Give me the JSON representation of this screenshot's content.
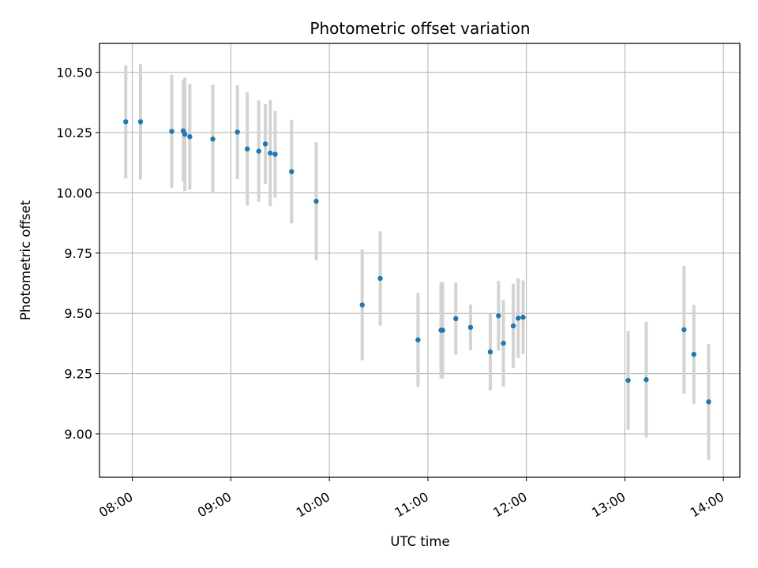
{
  "chart_data": {
    "type": "scatter",
    "title": "Photometric offset variation",
    "xlabel": "UTC time",
    "ylabel": "Photometric offset",
    "x_ticks": [
      "08:00",
      "09:00",
      "10:00",
      "11:00",
      "12:00",
      "13:00",
      "14:00"
    ],
    "y_ticks": [
      "9.00",
      "9.25",
      "9.50",
      "9.75",
      "10.00",
      "10.25",
      "10.50"
    ],
    "xlim": [
      "07:40",
      "14:10"
    ],
    "ylim": [
      8.82,
      10.62
    ],
    "grid": true,
    "marker_color": "#1f77b4",
    "errorbar_color": "#d3d3d3",
    "points": [
      {
        "x": "07:56",
        "y": 10.295,
        "yerr": 0.235
      },
      {
        "x": "08:05",
        "y": 10.295,
        "yerr": 0.24
      },
      {
        "x": "08:24",
        "y": 10.255,
        "yerr": 0.235
      },
      {
        "x": "08:31",
        "y": 10.257,
        "yerr": 0.21
      },
      {
        "x": "08:32",
        "y": 10.243,
        "yerr": 0.235
      },
      {
        "x": "08:35",
        "y": 10.233,
        "yerr": 0.22
      },
      {
        "x": "08:49",
        "y": 10.223,
        "yerr": 0.225
      },
      {
        "x": "09:04",
        "y": 10.252,
        "yerr": 0.195
      },
      {
        "x": "09:10",
        "y": 10.182,
        "yerr": 0.235
      },
      {
        "x": "09:17",
        "y": 10.173,
        "yerr": 0.21
      },
      {
        "x": "09:21",
        "y": 10.203,
        "yerr": 0.165
      },
      {
        "x": "09:24",
        "y": 10.165,
        "yerr": 0.22
      },
      {
        "x": "09:27",
        "y": 10.16,
        "yerr": 0.18
      },
      {
        "x": "09:37",
        "y": 10.088,
        "yerr": 0.215
      },
      {
        "x": "09:52",
        "y": 9.965,
        "yerr": 0.245
      },
      {
        "x": "10:20",
        "y": 9.535,
        "yerr": 0.23
      },
      {
        "x": "10:31",
        "y": 9.645,
        "yerr": 0.195
      },
      {
        "x": "10:54",
        "y": 9.39,
        "yerr": 0.195
      },
      {
        "x": "11:08",
        "y": 9.43,
        "yerr": 0.2
      },
      {
        "x": "11:09",
        "y": 9.43,
        "yerr": 0.2
      },
      {
        "x": "11:17",
        "y": 9.478,
        "yerr": 0.15
      },
      {
        "x": "11:26",
        "y": 9.442,
        "yerr": 0.095
      },
      {
        "x": "11:38",
        "y": 9.34,
        "yerr": 0.16
      },
      {
        "x": "11:43",
        "y": 9.49,
        "yerr": 0.145
      },
      {
        "x": "11:46",
        "y": 9.376,
        "yerr": 0.18
      },
      {
        "x": "11:52",
        "y": 9.448,
        "yerr": 0.175
      },
      {
        "x": "11:55",
        "y": 9.48,
        "yerr": 0.165
      },
      {
        "x": "11:58",
        "y": 9.484,
        "yerr": 0.152
      },
      {
        "x": "13:02",
        "y": 9.222,
        "yerr": 0.205
      },
      {
        "x": "13:13",
        "y": 9.225,
        "yerr": 0.24
      },
      {
        "x": "13:36",
        "y": 9.432,
        "yerr": 0.265
      },
      {
        "x": "13:42",
        "y": 9.33,
        "yerr": 0.205
      },
      {
        "x": "13:51",
        "y": 9.133,
        "yerr": 0.24
      }
    ]
  }
}
